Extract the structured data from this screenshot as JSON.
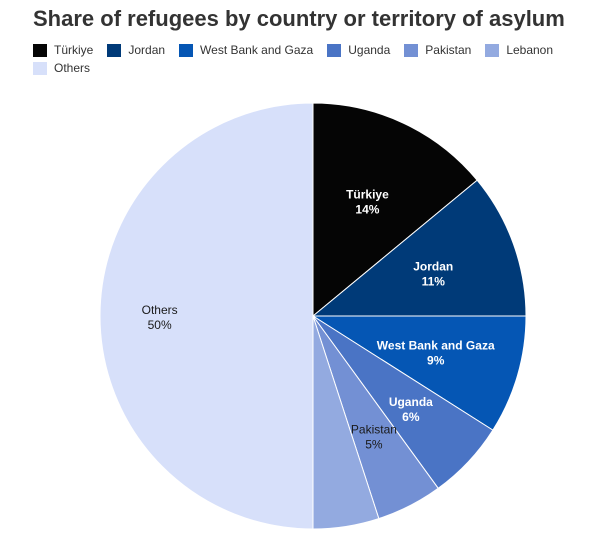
{
  "chart_data": {
    "type": "pie",
    "title": "Share of refugees by country or territory of asylum",
    "slices": [
      {
        "label": "Türkiye",
        "value": 14,
        "value_label": "14%",
        "color": "#050505",
        "label_color": "#ffffff",
        "bold": true
      },
      {
        "label": "Jordan",
        "value": 11,
        "value_label": "11%",
        "color": "#003a78",
        "label_color": "#ffffff",
        "bold": true
      },
      {
        "label": "West Bank and Gaza",
        "value": 9,
        "value_label": "9%",
        "color": "#0556b4",
        "label_color": "#ffffff",
        "bold": true
      },
      {
        "label": "Uganda",
        "value": 6,
        "value_label": "6%",
        "color": "#4a74c5",
        "label_color": "#ffffff",
        "bold": true
      },
      {
        "label": "Pakistan",
        "value": 5,
        "value_label": "5%",
        "color": "#7390d4",
        "label_color": "#1a1a1a",
        "bold": false
      },
      {
        "label": "Lebanon",
        "value": 5,
        "value_label": "",
        "color": "#93aae0",
        "label_color": "#1a1a1a",
        "bold": false
      },
      {
        "label": "Others",
        "value": 50,
        "value_label": "50%",
        "color": "#d7e0fa",
        "label_color": "#1a1a1a",
        "bold": false
      }
    ],
    "legend_position": "top-left"
  }
}
